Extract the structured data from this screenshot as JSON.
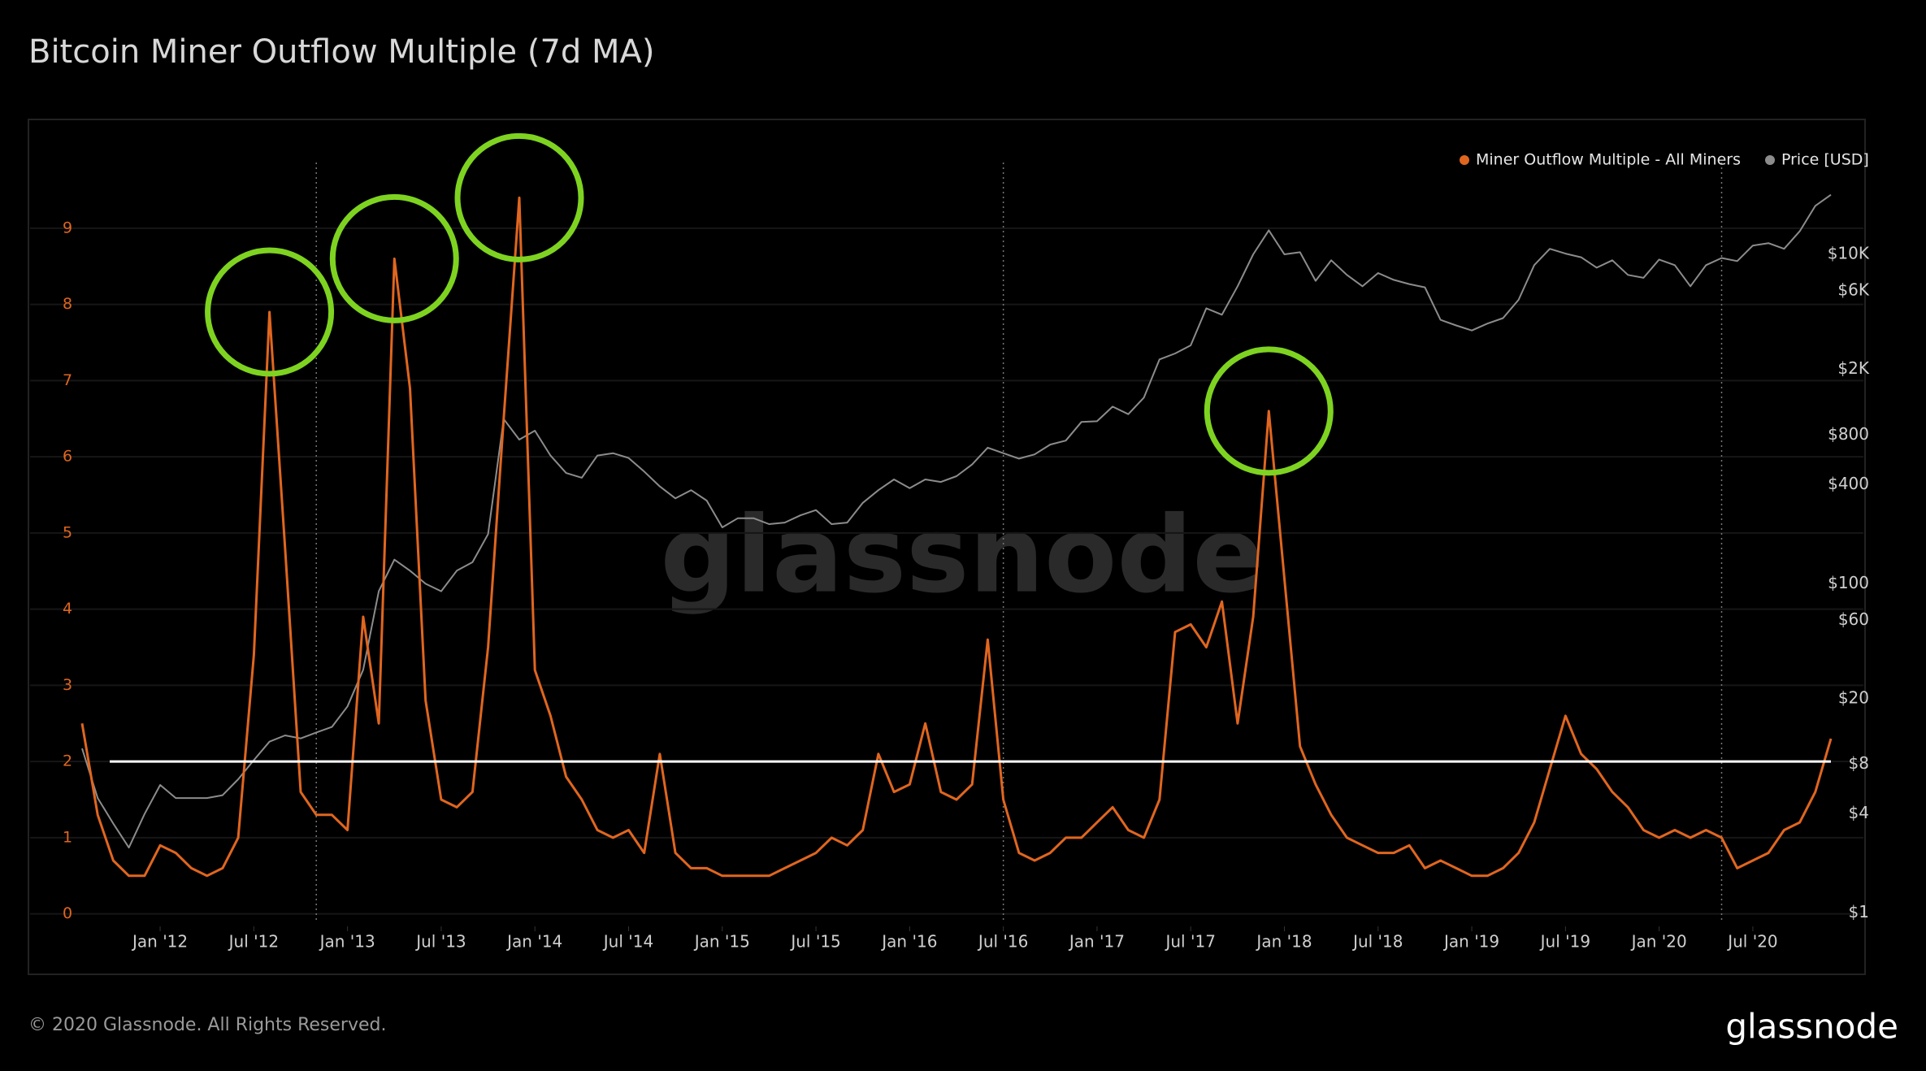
{
  "chart_data": {
    "type": "line",
    "title": "Bitcoin Miner Outflow Multiple (7d MA)",
    "watermark": "glassnode",
    "x": [
      "2011-08",
      "2011-09",
      "2011-10",
      "2011-11",
      "2011-12",
      "2012-01",
      "2012-02",
      "2012-03",
      "2012-04",
      "2012-05",
      "2012-06",
      "2012-07",
      "2012-08",
      "2012-09",
      "2012-10",
      "2012-11",
      "2012-12",
      "2013-01",
      "2013-02",
      "2013-03",
      "2013-04",
      "2013-05",
      "2013-06",
      "2013-07",
      "2013-08",
      "2013-09",
      "2013-10",
      "2013-11",
      "2013-12",
      "2014-01",
      "2014-02",
      "2014-03",
      "2014-04",
      "2014-05",
      "2014-06",
      "2014-07",
      "2014-08",
      "2014-09",
      "2014-10",
      "2014-11",
      "2014-12",
      "2015-01",
      "2015-02",
      "2015-03",
      "2015-04",
      "2015-05",
      "2015-06",
      "2015-07",
      "2015-08",
      "2015-09",
      "2015-10",
      "2015-11",
      "2015-12",
      "2016-01",
      "2016-02",
      "2016-03",
      "2016-04",
      "2016-05",
      "2016-06",
      "2016-07",
      "2016-08",
      "2016-09",
      "2016-10",
      "2016-11",
      "2016-12",
      "2017-01",
      "2017-02",
      "2017-03",
      "2017-04",
      "2017-05",
      "2017-06",
      "2017-07",
      "2017-08",
      "2017-09",
      "2017-10",
      "2017-11",
      "2017-12",
      "2018-01",
      "2018-02",
      "2018-03",
      "2018-04",
      "2018-05",
      "2018-06",
      "2018-07",
      "2018-08",
      "2018-09",
      "2018-10",
      "2018-11",
      "2018-12",
      "2019-01",
      "2019-02",
      "2019-03",
      "2019-04",
      "2019-05",
      "2019-06",
      "2019-07",
      "2019-08",
      "2019-09",
      "2019-10",
      "2019-11",
      "2019-12",
      "2020-01",
      "2020-02",
      "2020-03",
      "2020-04",
      "2020-05",
      "2020-06",
      "2020-07",
      "2020-08",
      "2020-09",
      "2020-10",
      "2020-11",
      "2020-12"
    ],
    "series": [
      {
        "name": "Miner Outflow Multiple - All Miners",
        "color": "#e0661f",
        "axis": "y",
        "values": [
          2.5,
          1.3,
          0.7,
          0.5,
          0.5,
          0.9,
          0.8,
          0.6,
          0.5,
          0.6,
          1.0,
          3.4,
          7.9,
          4.8,
          1.6,
          1.3,
          1.3,
          1.1,
          3.9,
          2.5,
          8.6,
          6.9,
          2.8,
          1.5,
          1.4,
          1.6,
          3.5,
          6.5,
          9.4,
          3.2,
          2.6,
          1.8,
          1.5,
          1.1,
          1.0,
          1.1,
          0.8,
          2.1,
          0.8,
          0.6,
          0.6,
          0.5,
          0.5,
          0.5,
          0.5,
          0.6,
          0.7,
          0.8,
          1.0,
          0.9,
          1.1,
          2.1,
          1.6,
          1.7,
          2.5,
          1.6,
          1.5,
          1.7,
          3.6,
          1.5,
          0.8,
          0.7,
          0.8,
          1.0,
          1.0,
          1.2,
          1.4,
          1.1,
          1.0,
          1.5,
          3.7,
          3.8,
          3.5,
          4.1,
          2.5,
          3.9,
          6.6,
          4.4,
          2.2,
          1.7,
          1.3,
          1.0,
          0.9,
          0.8,
          0.8,
          0.9,
          0.6,
          0.7,
          0.6,
          0.5,
          0.5,
          0.6,
          0.8,
          1.2,
          1.9,
          2.6,
          2.1,
          1.9,
          1.6,
          1.4,
          1.1,
          1.0,
          1.1,
          1.0,
          1.1,
          1.0,
          0.6,
          0.7,
          0.8,
          1.1,
          1.2,
          1.6,
          2.3
        ]
      },
      {
        "name": "Price [USD]",
        "color": "#8c8c8c",
        "axis": "y2",
        "values": [
          10,
          5,
          3.5,
          2.5,
          4,
          6,
          5,
          5,
          5,
          5.2,
          6.5,
          8.5,
          11,
          12,
          11.5,
          12.5,
          13.5,
          18,
          30,
          90,
          140,
          120,
          100,
          90,
          120,
          135,
          200,
          1000,
          750,
          850,
          600,
          470,
          440,
          600,
          620,
          580,
          480,
          390,
          330,
          370,
          320,
          220,
          250,
          250,
          230,
          235,
          260,
          280,
          230,
          235,
          310,
          370,
          430,
          380,
          430,
          415,
          450,
          530,
          670,
          620,
          575,
          610,
          700,
          740,
          960,
          970,
          1190,
          1070,
          1350,
          2300,
          2500,
          2800,
          4700,
          4300,
          6400,
          10000,
          14000,
          10000,
          10300,
          6900,
          9200,
          7500,
          6400,
          7700,
          7000,
          6600,
          6300,
          4000,
          3700,
          3450,
          3800,
          4100,
          5300,
          8600,
          10800,
          10100,
          9600,
          8300,
          9200,
          7500,
          7200,
          9300,
          8600,
          6400,
          8600,
          9500,
          9100,
          11300,
          11700,
          10800,
          13800,
          19700,
          23000
        ]
      }
    ],
    "xlim": [
      "2011-08",
      "2020-12"
    ],
    "xticks": [
      {
        "value": "2012-01",
        "label": "Jan '12"
      },
      {
        "value": "2012-07",
        "label": "Jul '12"
      },
      {
        "value": "2013-01",
        "label": "Jan '13"
      },
      {
        "value": "2013-07",
        "label": "Jul '13"
      },
      {
        "value": "2014-01",
        "label": "Jan '14"
      },
      {
        "value": "2014-07",
        "label": "Jul '14"
      },
      {
        "value": "2015-01",
        "label": "Jan '15"
      },
      {
        "value": "2015-07",
        "label": "Jul '15"
      },
      {
        "value": "2016-01",
        "label": "Jan '16"
      },
      {
        "value": "2016-07",
        "label": "Jul '16"
      },
      {
        "value": "2017-01",
        "label": "Jan '17"
      },
      {
        "value": "2017-07",
        "label": "Jul '17"
      },
      {
        "value": "2018-01",
        "label": "Jan '18"
      },
      {
        "value": "2018-07",
        "label": "Jul '18"
      },
      {
        "value": "2019-01",
        "label": "Jan '19"
      },
      {
        "value": "2019-07",
        "label": "Jul '19"
      },
      {
        "value": "2020-01",
        "label": "Jan '20"
      },
      {
        "value": "2020-07",
        "label": "Jul '20"
      }
    ],
    "ylim": [
      -0.1,
      10.3
    ],
    "yticks": [
      0,
      1,
      2,
      3,
      4,
      5,
      6,
      7,
      8,
      9
    ],
    "y2lim": [
      0.89,
      57500
    ],
    "y2log": true,
    "y2ticks": [
      {
        "value": 1,
        "label": "$1"
      },
      {
        "value": 4,
        "label": "$4"
      },
      {
        "value": 8,
        "label": "$8"
      },
      {
        "value": 20,
        "label": "$20"
      },
      {
        "value": 60,
        "label": "$60"
      },
      {
        "value": 100,
        "label": "$100"
      },
      {
        "value": 400,
        "label": "$400"
      },
      {
        "value": 800,
        "label": "$800"
      },
      {
        "value": 2000,
        "label": "$2K"
      },
      {
        "value": 6000,
        "label": "$6K"
      },
      {
        "value": 10000,
        "label": "$10K"
      }
    ],
    "grid": true,
    "legend": "top-right",
    "hline": 2,
    "vlines": [
      "2012-11",
      "2016-07",
      "2020-05"
    ],
    "highlights": [
      "2012-08",
      "2013-04",
      "2013-12",
      "2017-12"
    ],
    "highlight_color": "#7ed321"
  },
  "footer": {
    "copyright": "© 2020 Glassnode. All Rights Reserved.",
    "logo": "glassnode"
  }
}
